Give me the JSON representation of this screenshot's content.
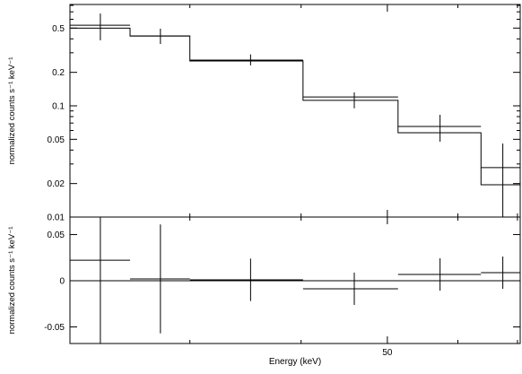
{
  "chart_data": [
    {
      "type": "errorbar",
      "ylabel": "normalized counts s⁻¹ keV⁻¹",
      "log_x": true,
      "log_y": true,
      "xlim": [
        22,
        70.5
      ],
      "xticks": [
        50
      ],
      "xminor_ticks": [
        30,
        40,
        60,
        70
      ],
      "ylim": [
        0.01,
        0.815
      ],
      "yticks": [
        0.5,
        0.2,
        0.1,
        0.05,
        0.02,
        0.01
      ],
      "yminor_ticks": [
        0.03,
        0.04,
        0.06,
        0.07,
        0.08,
        0.09,
        0.3,
        0.4,
        0.6,
        0.7,
        0.8
      ],
      "bin_edges": [
        22,
        25.7,
        30,
        40.2,
        51.4,
        63.7,
        70.5
      ],
      "x": [
        23.8,
        27.8,
        35.1,
        45.9,
        57.3,
        67.4
      ],
      "values": [
        0.53,
        0.425,
        0.258,
        0.12,
        0.0652,
        0.0278
      ],
      "lower": [
        0.388,
        0.36,
        0.231,
        0.095,
        0.0476,
        0.008
      ],
      "upper": [
        0.676,
        0.494,
        0.29,
        0.132,
        0.083,
        0.0458
      ],
      "model": [
        0.5,
        0.425,
        0.253,
        0.112,
        0.0573,
        0.0195
      ],
      "color": "#000000"
    },
    {
      "type": "residual",
      "ylabel": "normalized counts s⁻¹ keV⁻¹",
      "xlabel": "Energy (keV)",
      "log_x": true,
      "xlim": [
        22,
        70.5
      ],
      "xticks": [
        50
      ],
      "xminor_ticks": [
        30,
        40,
        60,
        70
      ],
      "ylim": [
        -0.068,
        0.069
      ],
      "yticks": [
        0.05,
        0,
        -0.05
      ],
      "bin_edges": [
        22,
        25.7,
        30,
        40.2,
        51.4,
        63.7,
        70.5
      ],
      "x": [
        23.8,
        27.8,
        35.1,
        45.9,
        57.3,
        67.4
      ],
      "values": [
        0.0223,
        0.002,
        0.001,
        -0.0087,
        0.0068,
        0.0087
      ],
      "errors": [
        0.09,
        0.059,
        0.023,
        0.0175,
        0.0175,
        0.0175
      ],
      "color": "#000000"
    }
  ]
}
